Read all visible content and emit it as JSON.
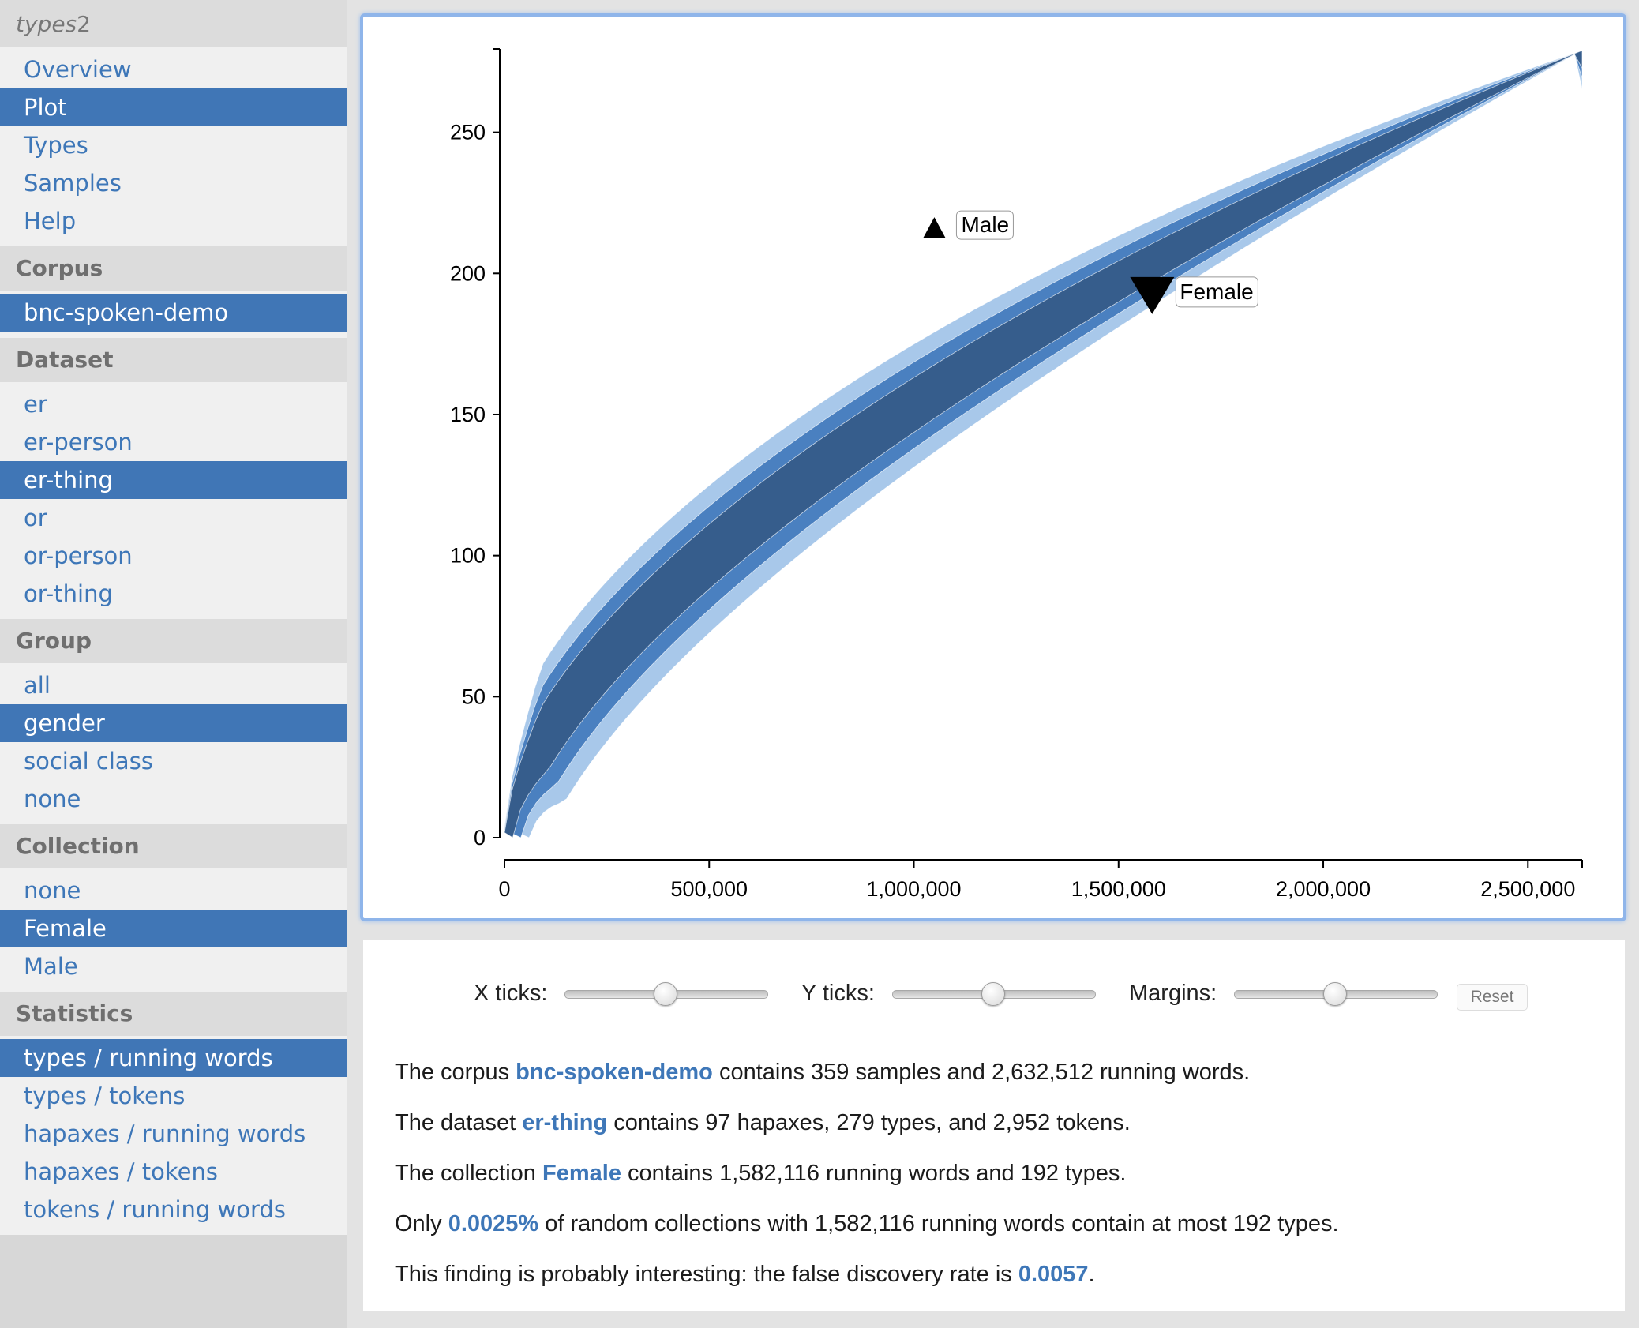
{
  "sidebar": {
    "app_title_italic": "types",
    "app_title_num": "2",
    "nav": [
      {
        "label": "Overview",
        "selected": false
      },
      {
        "label": "Plot",
        "selected": true
      },
      {
        "label": "Types",
        "selected": false
      },
      {
        "label": "Samples",
        "selected": false
      },
      {
        "label": "Help",
        "selected": false
      }
    ],
    "sections": [
      {
        "title": "Corpus",
        "items": [
          {
            "label": "bnc-spoken-demo",
            "selected": true
          }
        ]
      },
      {
        "title": "Dataset",
        "items": [
          {
            "label": "er",
            "selected": false
          },
          {
            "label": "er-person",
            "selected": false
          },
          {
            "label": "er-thing",
            "selected": true
          },
          {
            "label": "or",
            "selected": false
          },
          {
            "label": "or-person",
            "selected": false
          },
          {
            "label": "or-thing",
            "selected": false
          }
        ]
      },
      {
        "title": "Group",
        "items": [
          {
            "label": "all",
            "selected": false
          },
          {
            "label": "gender",
            "selected": true
          },
          {
            "label": "social class",
            "selected": false
          },
          {
            "label": "none",
            "selected": false
          }
        ]
      },
      {
        "title": "Collection",
        "items": [
          {
            "label": "none",
            "selected": false
          },
          {
            "label": "Female",
            "selected": true
          },
          {
            "label": "Male",
            "selected": false
          }
        ]
      },
      {
        "title": "Statistics",
        "items": [
          {
            "label": "types / running words",
            "selected": true
          },
          {
            "label": "types / tokens",
            "selected": false
          },
          {
            "label": "hapaxes / running words",
            "selected": false
          },
          {
            "label": "hapaxes / tokens",
            "selected": false
          },
          {
            "label": "tokens / running words",
            "selected": false
          }
        ]
      }
    ]
  },
  "chart_data": {
    "type": "area",
    "xlim": [
      0,
      2632512
    ],
    "ylim": [
      0,
      279
    ],
    "xticks": [
      0,
      500000,
      1000000,
      1500000,
      2000000,
      2500000
    ],
    "xtick_labels": [
      "0",
      "500,000",
      "1,000,000",
      "1,500,000",
      "2,000,000",
      "2,500,000"
    ],
    "yticks": [
      0,
      50,
      100,
      150,
      200,
      250
    ],
    "ytick_labels": [
      "0",
      "50",
      "100",
      "150",
      "200",
      "250"
    ],
    "band_colors": [
      "#a8c8ea",
      "#4a80c0",
      "#365d8c"
    ],
    "markers": [
      {
        "label": "Male",
        "x": 1050000,
        "y": 216,
        "shape": "triangle-up"
      },
      {
        "label": "Female",
        "x": 1582116,
        "y": 192,
        "shape": "triangle-down"
      }
    ]
  },
  "controls": {
    "x_ticks_label": "X ticks:",
    "y_ticks_label": "Y ticks:",
    "margins_label": "Margins:",
    "x_ticks_value": 0.5,
    "y_ticks_value": 0.5,
    "margins_value": 0.5,
    "reset_label": "Reset"
  },
  "info": {
    "l1": {
      "a": "The corpus ",
      "b": "bnc-spoken-demo",
      "c": " contains 359 samples and 2,632,512 running words."
    },
    "l2": {
      "a": "The dataset ",
      "b": "er-thing",
      "c": " contains 97 hapaxes, 279 types, and 2,952 tokens."
    },
    "l3": {
      "a": "The collection ",
      "b": "Female",
      "c": " contains 1,582,116 running words and 192 types."
    },
    "l4": {
      "a": "Only ",
      "b": "0.0025%",
      "c": " of random collections with 1,582,116 running words contain at most 192 types."
    },
    "l5": {
      "a": "This finding is probably interesting: the false discovery rate is ",
      "b": "0.0057",
      "c": "."
    }
  }
}
